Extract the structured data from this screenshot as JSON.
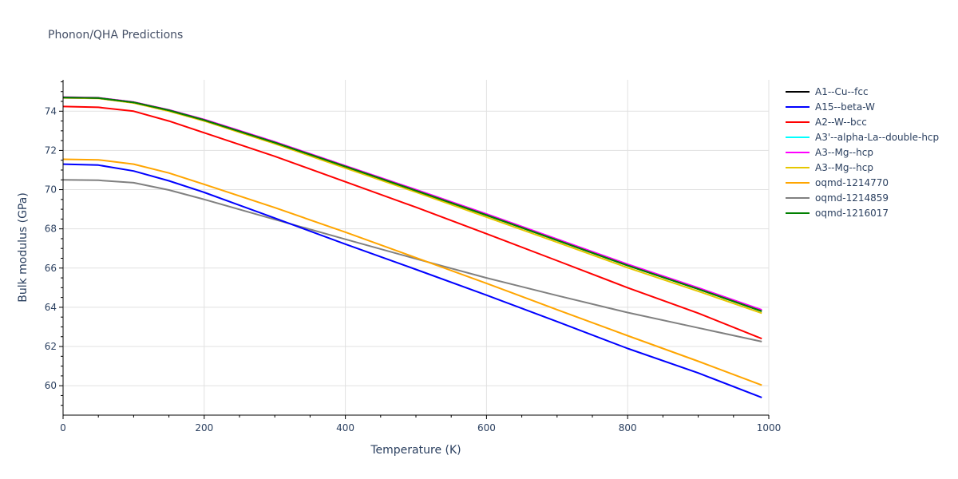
{
  "chart_data": {
    "type": "line",
    "title": "Phonon/QHA Predictions",
    "xlabel": "Temperature (K)",
    "ylabel": "Bulk modulus (GPa)",
    "xlim": [
      0,
      1000
    ],
    "ylim": [
      58.5,
      75.6
    ],
    "x_ticks": [
      0,
      200,
      400,
      600,
      800,
      1000
    ],
    "y_ticks": [
      60,
      62,
      64,
      66,
      68,
      70,
      72,
      74
    ],
    "grid": true,
    "legend_position": "right",
    "x": [
      0,
      50,
      100,
      150,
      200,
      300,
      400,
      500,
      600,
      700,
      800,
      900,
      990
    ],
    "series": [
      {
        "name": "A1--Cu--fcc",
        "color": "#000000",
        "values": [
          74.7,
          74.67,
          74.45,
          74.05,
          73.55,
          72.4,
          71.18,
          69.95,
          68.7,
          67.42,
          66.13,
          64.93,
          63.8
        ]
      },
      {
        "name": "A15--beta-W",
        "color": "#0000ff",
        "values": [
          71.3,
          71.25,
          70.95,
          70.45,
          69.86,
          68.55,
          67.22,
          65.93,
          64.62,
          63.27,
          61.9,
          60.65,
          59.4
        ]
      },
      {
        "name": "A2--W--bcc",
        "color": "#ff0000",
        "values": [
          74.24,
          74.2,
          74.0,
          73.5,
          72.9,
          71.7,
          70.4,
          69.1,
          67.75,
          66.38,
          65.0,
          63.7,
          62.4
        ]
      },
      {
        "name": "A3'--alpha-La--double-hcp",
        "color": "#00ffff",
        "values": [
          74.7,
          74.67,
          74.45,
          74.05,
          73.55,
          72.4,
          71.18,
          69.95,
          68.7,
          67.42,
          66.13,
          64.93,
          63.8
        ]
      },
      {
        "name": "A3--Mg--hcp",
        "color": "#ff00ff",
        "values": [
          74.72,
          74.69,
          74.47,
          74.07,
          73.58,
          72.44,
          71.22,
          70.0,
          68.76,
          67.48,
          66.2,
          65.0,
          63.87
        ]
      },
      {
        "name": "A3--Mg--hcp",
        "color": "#e6c700",
        "values": [
          74.68,
          74.65,
          74.42,
          74.0,
          73.5,
          72.34,
          71.1,
          69.87,
          68.6,
          67.32,
          66.02,
          64.82,
          63.7
        ]
      },
      {
        "name": "oqmd-1214770",
        "color": "#ffa500",
        "values": [
          71.55,
          71.52,
          71.3,
          70.85,
          70.27,
          69.08,
          67.83,
          66.53,
          65.22,
          63.88,
          62.55,
          61.25,
          60.03
        ]
      },
      {
        "name": "oqmd-1214859",
        "color": "#808080",
        "values": [
          70.5,
          70.48,
          70.35,
          69.98,
          69.5,
          68.48,
          67.47,
          66.47,
          65.5,
          64.6,
          63.73,
          62.95,
          62.25
        ]
      },
      {
        "name": "oqmd-1216017",
        "color": "#008000",
        "values": [
          74.7,
          74.67,
          74.45,
          74.05,
          73.55,
          72.4,
          71.18,
          69.95,
          68.7,
          67.42,
          66.13,
          64.93,
          63.8
        ]
      }
    ]
  }
}
